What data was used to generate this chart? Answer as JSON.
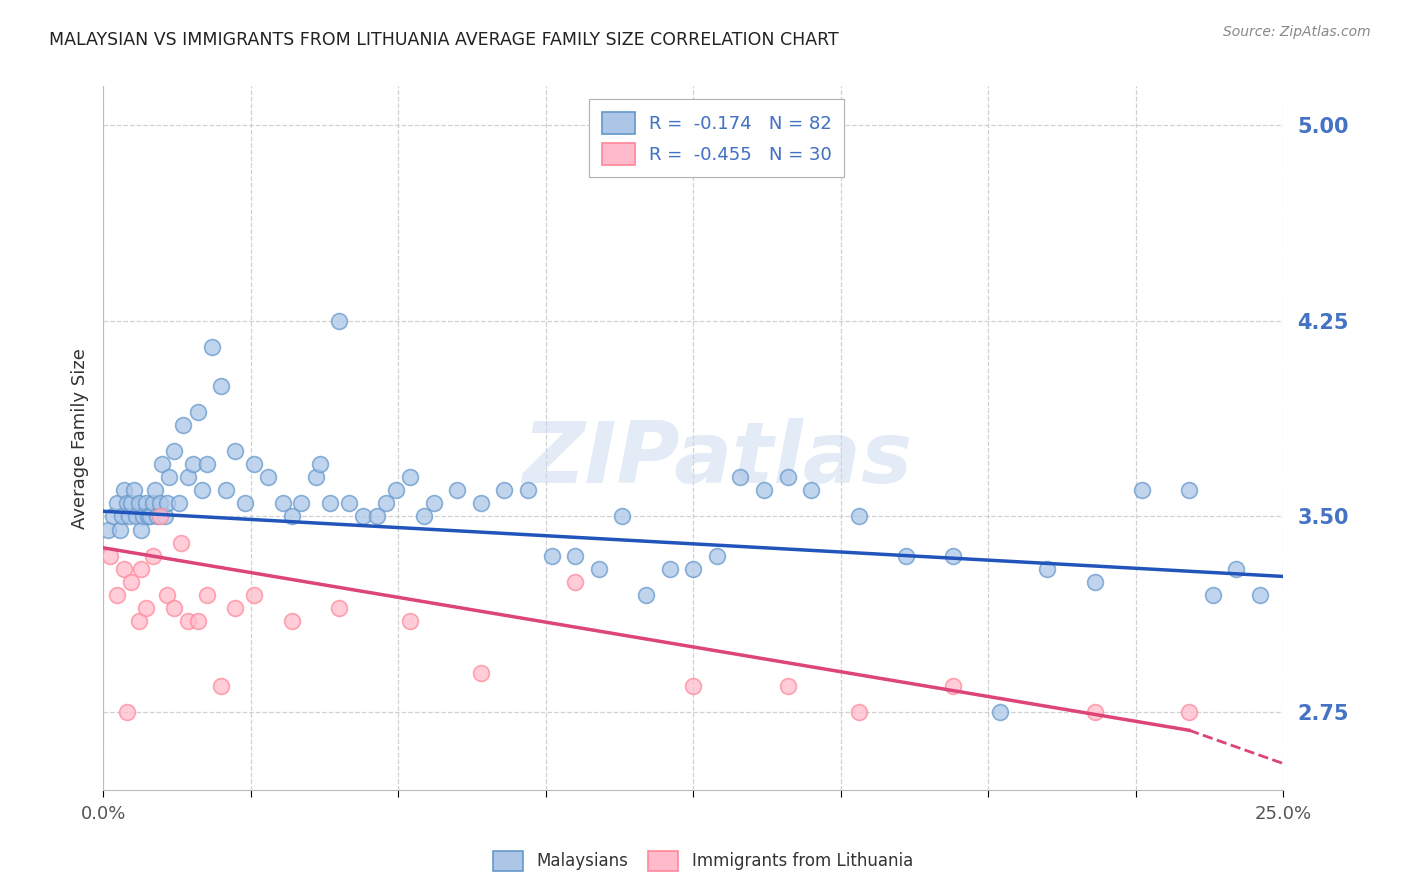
{
  "title": "MALAYSIAN VS IMMIGRANTS FROM LITHUANIA AVERAGE FAMILY SIZE CORRELATION CHART",
  "source": "Source: ZipAtlas.com",
  "ylabel": "Average Family Size",
  "ylim": [
    2.45,
    5.15
  ],
  "xlim": [
    0.0,
    25.0
  ],
  "yticks": [
    2.75,
    3.5,
    4.25,
    5.0
  ],
  "xticks": [
    0.0,
    3.125,
    6.25,
    9.375,
    12.5,
    15.625,
    18.75,
    21.875,
    25.0
  ],
  "title_color": "#222222",
  "source_color": "#888888",
  "ytick_color": "#4472c4",
  "xtick_color": "#555555",
  "grid_color": "#cccccc",
  "background_color": "#ffffff",
  "blue_face_color": "#adc6e8",
  "blue_edge_color": "#6699cc",
  "pink_face_color": "#ffbbcc",
  "pink_edge_color": "#ff8899",
  "blue_line_color": "#2255bb",
  "pink_line_color": "#dd4477",
  "legend_label_blue": "R =  -0.174   N = 82",
  "legend_label_pink": "R =  -0.455   N = 30",
  "legend_bottom_blue": "Malaysians",
  "legend_bottom_pink": "Immigrants from Lithuania",
  "watermark": "ZIPatlas",
  "blue_scatter_x": [
    0.1,
    0.2,
    0.3,
    0.35,
    0.4,
    0.45,
    0.5,
    0.55,
    0.6,
    0.65,
    0.7,
    0.75,
    0.8,
    0.85,
    0.9,
    0.95,
    1.0,
    1.05,
    1.1,
    1.15,
    1.2,
    1.25,
    1.3,
    1.35,
    1.4,
    1.5,
    1.6,
    1.7,
    1.8,
    1.9,
    2.0,
    2.1,
    2.2,
    2.3,
    2.5,
    2.6,
    2.8,
    3.0,
    3.2,
    3.5,
    3.8,
    4.0,
    4.2,
    4.5,
    5.0,
    5.5,
    6.0,
    6.5,
    7.0,
    7.5,
    8.0,
    9.0,
    10.0,
    11.0,
    12.0,
    13.0,
    14.0,
    15.0,
    16.0,
    17.0,
    18.0,
    19.0,
    20.0,
    21.0,
    22.0,
    23.0,
    23.5,
    24.0,
    24.5,
    13.5,
    14.5,
    6.2,
    6.8,
    5.2,
    5.8,
    4.6,
    4.8,
    8.5,
    9.5,
    10.5,
    11.5,
    12.5
  ],
  "blue_scatter_y": [
    3.45,
    3.5,
    3.55,
    3.45,
    3.5,
    3.6,
    3.55,
    3.5,
    3.55,
    3.6,
    3.5,
    3.55,
    3.45,
    3.5,
    3.55,
    3.5,
    3.5,
    3.55,
    3.6,
    3.5,
    3.55,
    3.7,
    3.5,
    3.55,
    3.65,
    3.75,
    3.55,
    3.85,
    3.65,
    3.7,
    3.9,
    3.6,
    3.7,
    4.15,
    4.0,
    3.6,
    3.75,
    3.55,
    3.7,
    3.65,
    3.55,
    3.5,
    3.55,
    3.65,
    4.25,
    3.5,
    3.55,
    3.65,
    3.55,
    3.6,
    3.55,
    3.6,
    3.35,
    3.5,
    3.3,
    3.35,
    3.6,
    3.6,
    3.5,
    3.35,
    3.35,
    2.75,
    3.3,
    3.25,
    3.6,
    3.6,
    3.2,
    3.3,
    3.2,
    3.65,
    3.65,
    3.6,
    3.5,
    3.55,
    3.5,
    3.7,
    3.55,
    3.6,
    3.35,
    3.3,
    3.2,
    3.3
  ],
  "pink_scatter_x": [
    0.15,
    0.3,
    0.45,
    0.6,
    0.75,
    0.9,
    1.05,
    1.2,
    1.35,
    1.5,
    1.65,
    1.8,
    2.0,
    2.2,
    2.5,
    2.8,
    3.2,
    4.0,
    5.0,
    6.5,
    8.0,
    10.0,
    12.5,
    14.5,
    16.0,
    18.0,
    21.0,
    23.0,
    0.5,
    0.8
  ],
  "pink_scatter_y": [
    3.35,
    3.2,
    3.3,
    3.25,
    3.1,
    3.15,
    3.35,
    3.5,
    3.2,
    3.15,
    3.4,
    3.1,
    3.1,
    3.2,
    2.85,
    3.15,
    3.2,
    3.1,
    3.15,
    3.1,
    2.9,
    3.25,
    2.85,
    2.85,
    2.75,
    2.85,
    2.75,
    2.75,
    2.75,
    3.3
  ],
  "blue_trend_start_x": 0.0,
  "blue_trend_end_x": 25.0,
  "blue_trend_start_y": 3.52,
  "blue_trend_end_y": 3.27,
  "pink_solid_start_x": 0.0,
  "pink_solid_end_x": 23.0,
  "pink_solid_start_y": 3.38,
  "pink_solid_end_y": 2.68,
  "pink_dash_start_x": 23.0,
  "pink_dash_end_x": 25.5,
  "pink_dash_start_y": 2.68,
  "pink_dash_end_y": 2.52
}
